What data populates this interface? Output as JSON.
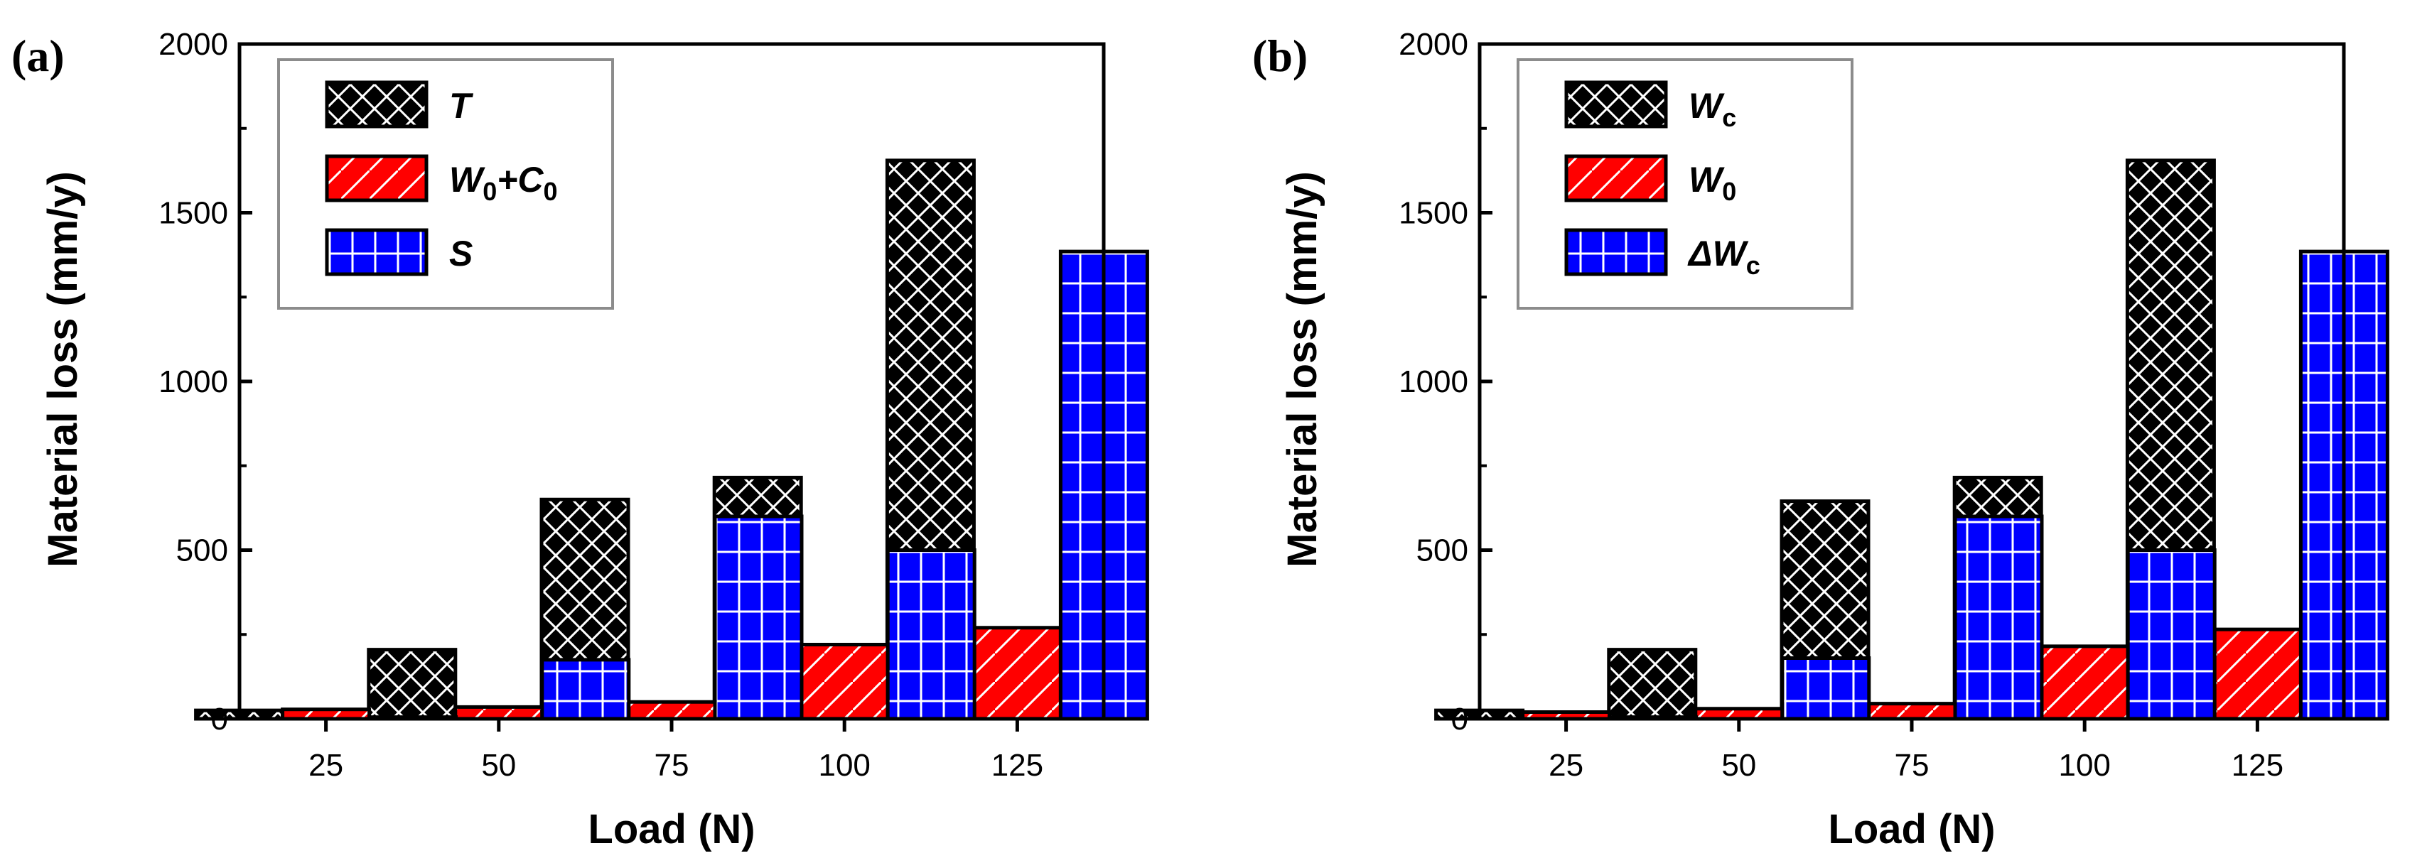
{
  "colors": {
    "black_bar": "#000000",
    "red_bar": "#ff0000",
    "blue_bar": "#0000ff",
    "hatch": "#ffffff",
    "legend_border": "#8c8c8c"
  },
  "chart_data": [
    {
      "type": "bar",
      "panel_label": "(a)",
      "categories": [
        "25",
        "50",
        "75",
        "100",
        "125"
      ],
      "xlabel": "Load (N)",
      "ylabel": "Material loss  (mm/y)",
      "ylim": [
        0,
        2000
      ],
      "yticks": [
        "0",
        "500",
        "1000",
        "1500",
        "2000"
      ],
      "legend_position": "top-left",
      "series": [
        {
          "name": "T",
          "key": "T",
          "legend": {
            "main": "T",
            "sub": ""
          },
          "pattern": "crosshatch",
          "color": "#000000",
          "values": [
            25,
            205,
            650,
            715,
            1655
          ]
        },
        {
          "name": "W0+C0",
          "key": "W0C0",
          "legend": {
            "main": "W",
            "sub": "0",
            "mid": "+C",
            "sub2": "0"
          },
          "pattern": "diagonal",
          "color": "#ff0000",
          "values": [
            28,
            35,
            50,
            220,
            270
          ]
        },
        {
          "name": "S",
          "key": "S",
          "legend": {
            "main": "S",
            "sub": ""
          },
          "pattern": "grid",
          "color": "#0000ff",
          "values": [
            5,
            175,
            600,
            500,
            1385
          ]
        }
      ]
    },
    {
      "type": "bar",
      "panel_label": "(b)",
      "categories": [
        "25",
        "50",
        "75",
        "100",
        "125"
      ],
      "xlabel": "Load (N)",
      "ylabel": "Material loss  (mm/y)",
      "ylim": [
        0,
        2000
      ],
      "yticks": [
        "0",
        "500",
        "1000",
        "1500",
        "2000"
      ],
      "legend_position": "top-left",
      "series": [
        {
          "name": "Wc",
          "key": "Wc",
          "legend": {
            "main": "W",
            "sub": "c"
          },
          "pattern": "crosshatch",
          "color": "#000000",
          "values": [
            25,
            205,
            645,
            715,
            1655
          ]
        },
        {
          "name": "W0",
          "key": "W0",
          "legend": {
            "main": "W",
            "sub": "0"
          },
          "pattern": "diagonal",
          "color": "#ff0000",
          "values": [
            20,
            30,
            45,
            215,
            265
          ]
        },
        {
          "name": "ΔWc",
          "key": "dWc",
          "legend": {
            "main": "ΔW",
            "sub": "c"
          },
          "pattern": "grid",
          "color": "#0000ff",
          "values": [
            5,
            180,
            600,
            500,
            1385
          ]
        }
      ]
    }
  ]
}
